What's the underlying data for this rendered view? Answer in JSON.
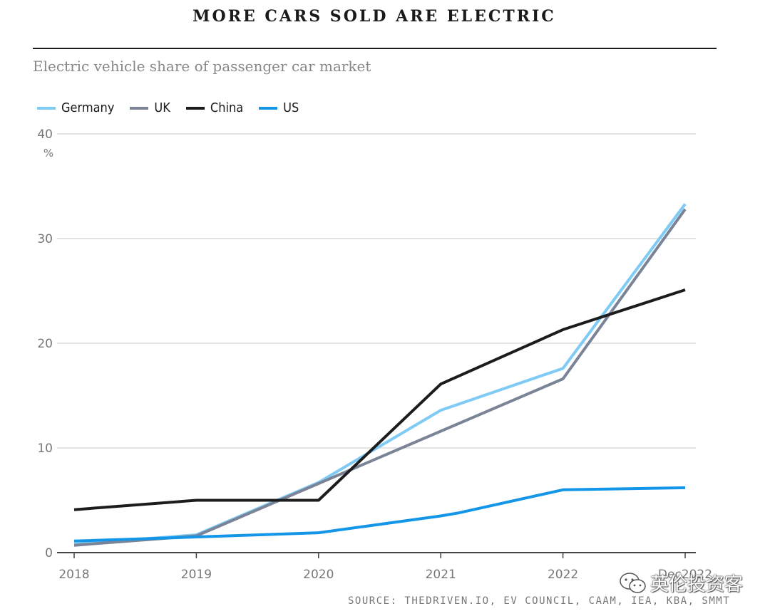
{
  "header": {
    "title": "MORE CARS SOLD ARE ELECTRIC",
    "subtitle": "Electric vehicle share of passenger car market"
  },
  "source": "SOURCE: THEDRIVEN.IO, EV COUNCIL, CAAM, IEA, KBA, SMMT",
  "watermark": {
    "text": "英伦投资客",
    "icon": "wechat-icon"
  },
  "chart_data": {
    "type": "line",
    "title": "MORE CARS SOLD ARE ELECTRIC",
    "subtitle": "Electric vehicle share of passenger car market",
    "ylabel": "%",
    "ylim": [
      0,
      40
    ],
    "yticks": [
      0,
      10,
      20,
      30,
      40
    ],
    "grid": true,
    "legend_placement": "top-left",
    "x_positions": [
      2018,
      2019,
      2020,
      2021,
      2022,
      2023
    ],
    "x_tick_labels": [
      "2018",
      "2019",
      "2020",
      "2021",
      "2022",
      "Dec2022"
    ],
    "series": [
      {
        "name": "Germany",
        "color": "#7fcbf5",
        "points": [
          [
            2018,
            0.8
          ],
          [
            2019,
            1.7
          ],
          [
            2020,
            6.7
          ],
          [
            2021,
            13.6
          ],
          [
            2022,
            17.6
          ],
          [
            2023,
            33.3
          ]
        ]
      },
      {
        "name": "UK",
        "color": "#7a8496",
        "points": [
          [
            2018,
            0.7
          ],
          [
            2019,
            1.6
          ],
          [
            2020,
            6.6
          ],
          [
            2021,
            11.6
          ],
          [
            2022,
            16.6
          ],
          [
            2023,
            32.8
          ]
        ]
      },
      {
        "name": "China",
        "color": "#1c1c1c",
        "points": [
          [
            2018,
            4.1
          ],
          [
            2019,
            5.0
          ],
          [
            2020,
            5.0
          ],
          [
            2021,
            16.1
          ],
          [
            2022,
            21.3
          ],
          [
            2023,
            25.1
          ]
        ]
      },
      {
        "name": "US",
        "color": "#1496e8",
        "points": [
          [
            2018,
            1.1
          ],
          [
            2019,
            1.5
          ],
          [
            2020,
            1.9
          ],
          [
            2021,
            3.5
          ],
          [
            2021.15,
            3.8
          ],
          [
            2022,
            6.0
          ],
          [
            2023,
            6.2
          ]
        ]
      }
    ]
  }
}
